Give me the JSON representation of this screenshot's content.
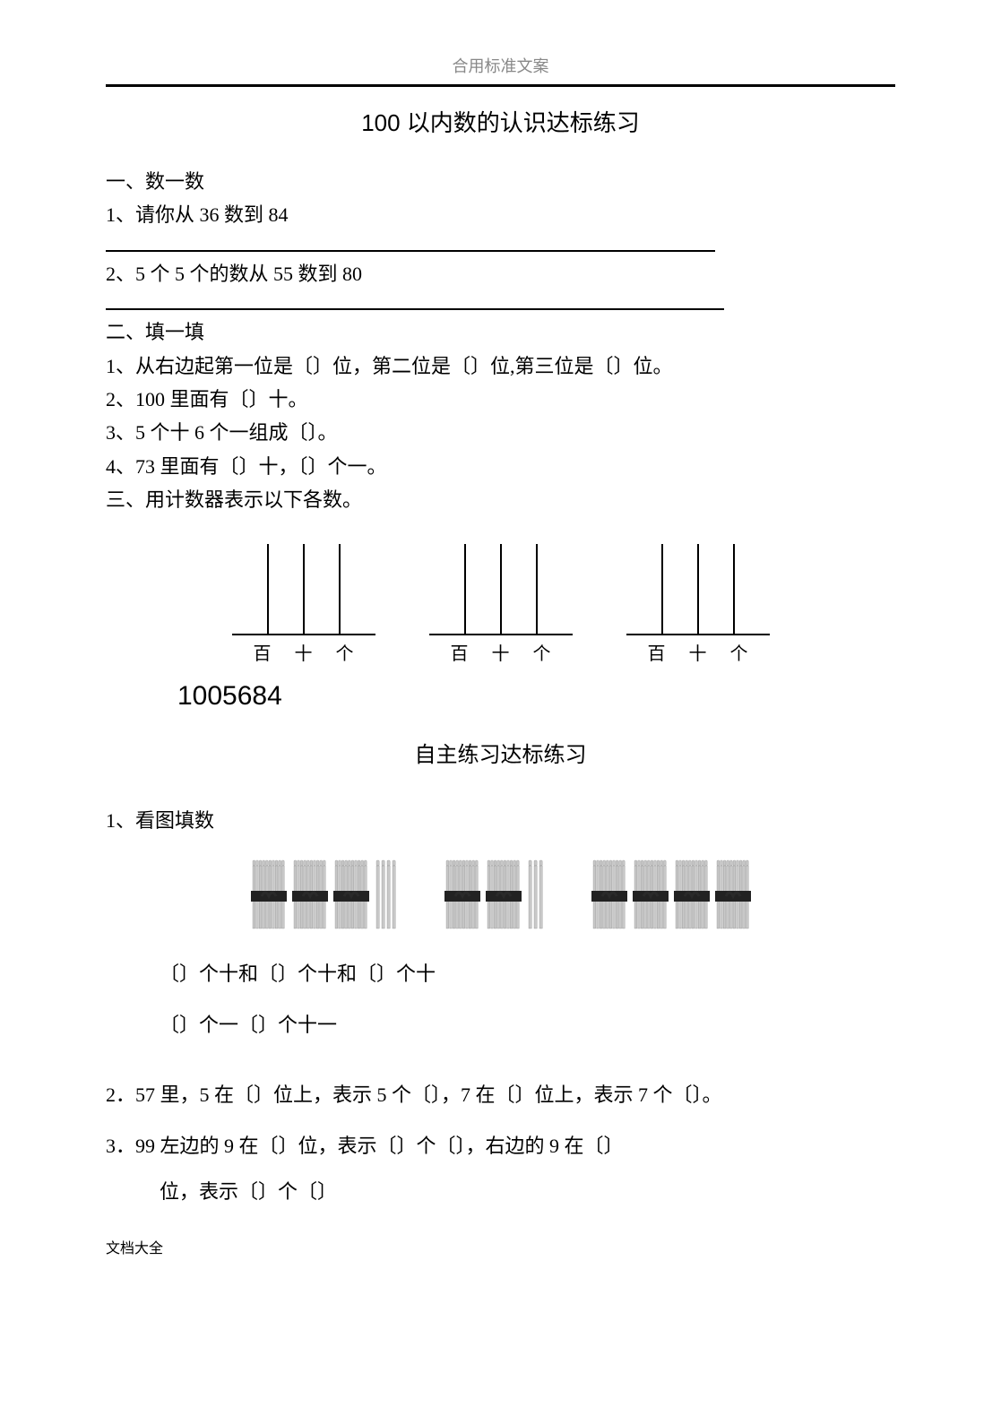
{
  "header_label": "合用标准文案",
  "title": "100 以内数的认识达标练习",
  "section1": {
    "heading": "一、数一数",
    "q1": "1、请你从 36 数到 84",
    "q2": "2、5 个 5 个的数从 55 数到 80"
  },
  "section2": {
    "heading": "二、填一填",
    "q1": "1、从右边起第一位是〔〕位，第二位是〔〕位,第三位是〔〕位。",
    "q2": "2、100 里面有〔〕十。",
    "q3": "3、5 个十 6 个一组成〔〕。",
    "q4": "4、73 里面有〔〕十，〔〕个一。"
  },
  "section3": {
    "heading": "三、用计数器表示以下各数。",
    "abacus_labels": [
      "百",
      "十",
      "个"
    ],
    "big_number": "1005684"
  },
  "subtitle": "自主练习达标练习",
  "section4": {
    "q1_heading": "1、看图填数",
    "bundles": {
      "group1": {
        "tens": 3,
        "ones": 4
      },
      "group2": {
        "tens": 2,
        "ones": 3
      },
      "group3": {
        "tens": 4,
        "ones": 0
      }
    },
    "line1": "〔〕个十和〔〕个十和〔〕个十",
    "line2": "〔〕个一〔〕个十一",
    "q2": "2．57 里，5 在〔〕位上，表示 5 个〔〕，7 在〔〕位上，表示 7 个〔〕。",
    "q3a": "3．99 左边的 9 在〔〕位，表示〔〕个〔〕，右边的 9 在〔〕",
    "q3b": "位，表示〔〕个〔〕"
  },
  "footer": "文档大全",
  "colors": {
    "text": "#000000",
    "muted": "#888888",
    "bundle_fill": "#c8c8c8",
    "bundle_stroke": "#808080",
    "band": "#222222",
    "band_knot": "#2a2a2a"
  }
}
